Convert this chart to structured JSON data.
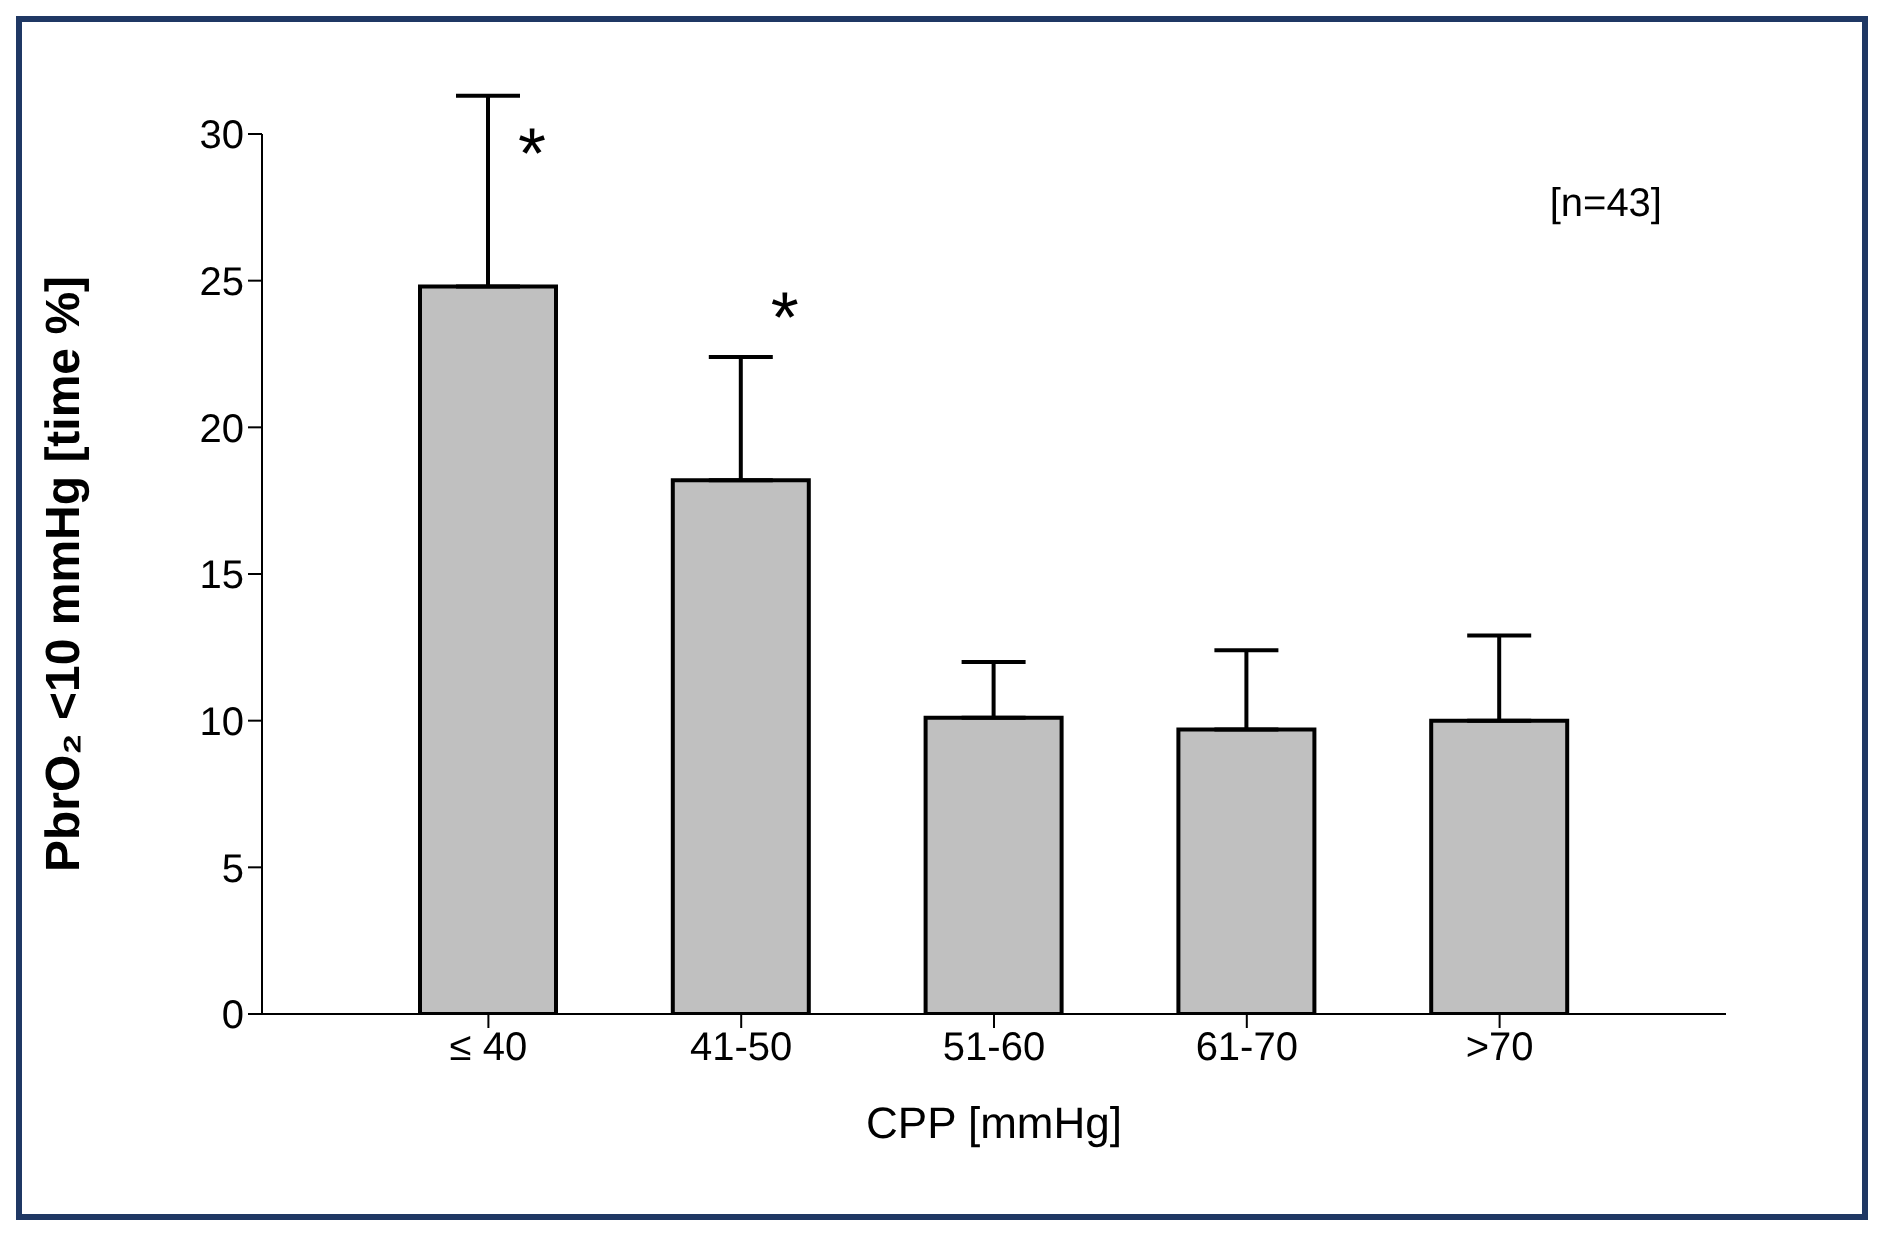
{
  "chart_data": {
    "type": "bar",
    "xlabel": "CPP [mmHg]",
    "ylabel": "PbrO₂ <10 mmHg [time %]",
    "categories": [
      "≤ 40",
      "41-50",
      "51-60",
      "61-70",
      ">70"
    ],
    "values": [
      24.8,
      18.2,
      10.1,
      9.7,
      10.0
    ],
    "errors": [
      [
        24.8,
        31.3
      ],
      [
        18.2,
        22.4
      ],
      [
        10.1,
        12.0
      ],
      [
        9.7,
        12.4
      ],
      [
        10.0,
        12.9
      ]
    ],
    "color": "#c0c0c0",
    "ylim": [
      0,
      30
    ],
    "yticks": [
      0,
      5,
      10,
      15,
      20,
      25,
      30
    ],
    "grid": false,
    "annotations": [
      {
        "text": "*",
        "x": "≤ 40",
        "y": 28
      },
      {
        "text": "*",
        "x": "41-50",
        "y": 22.4
      },
      "[n=43]"
    ]
  }
}
